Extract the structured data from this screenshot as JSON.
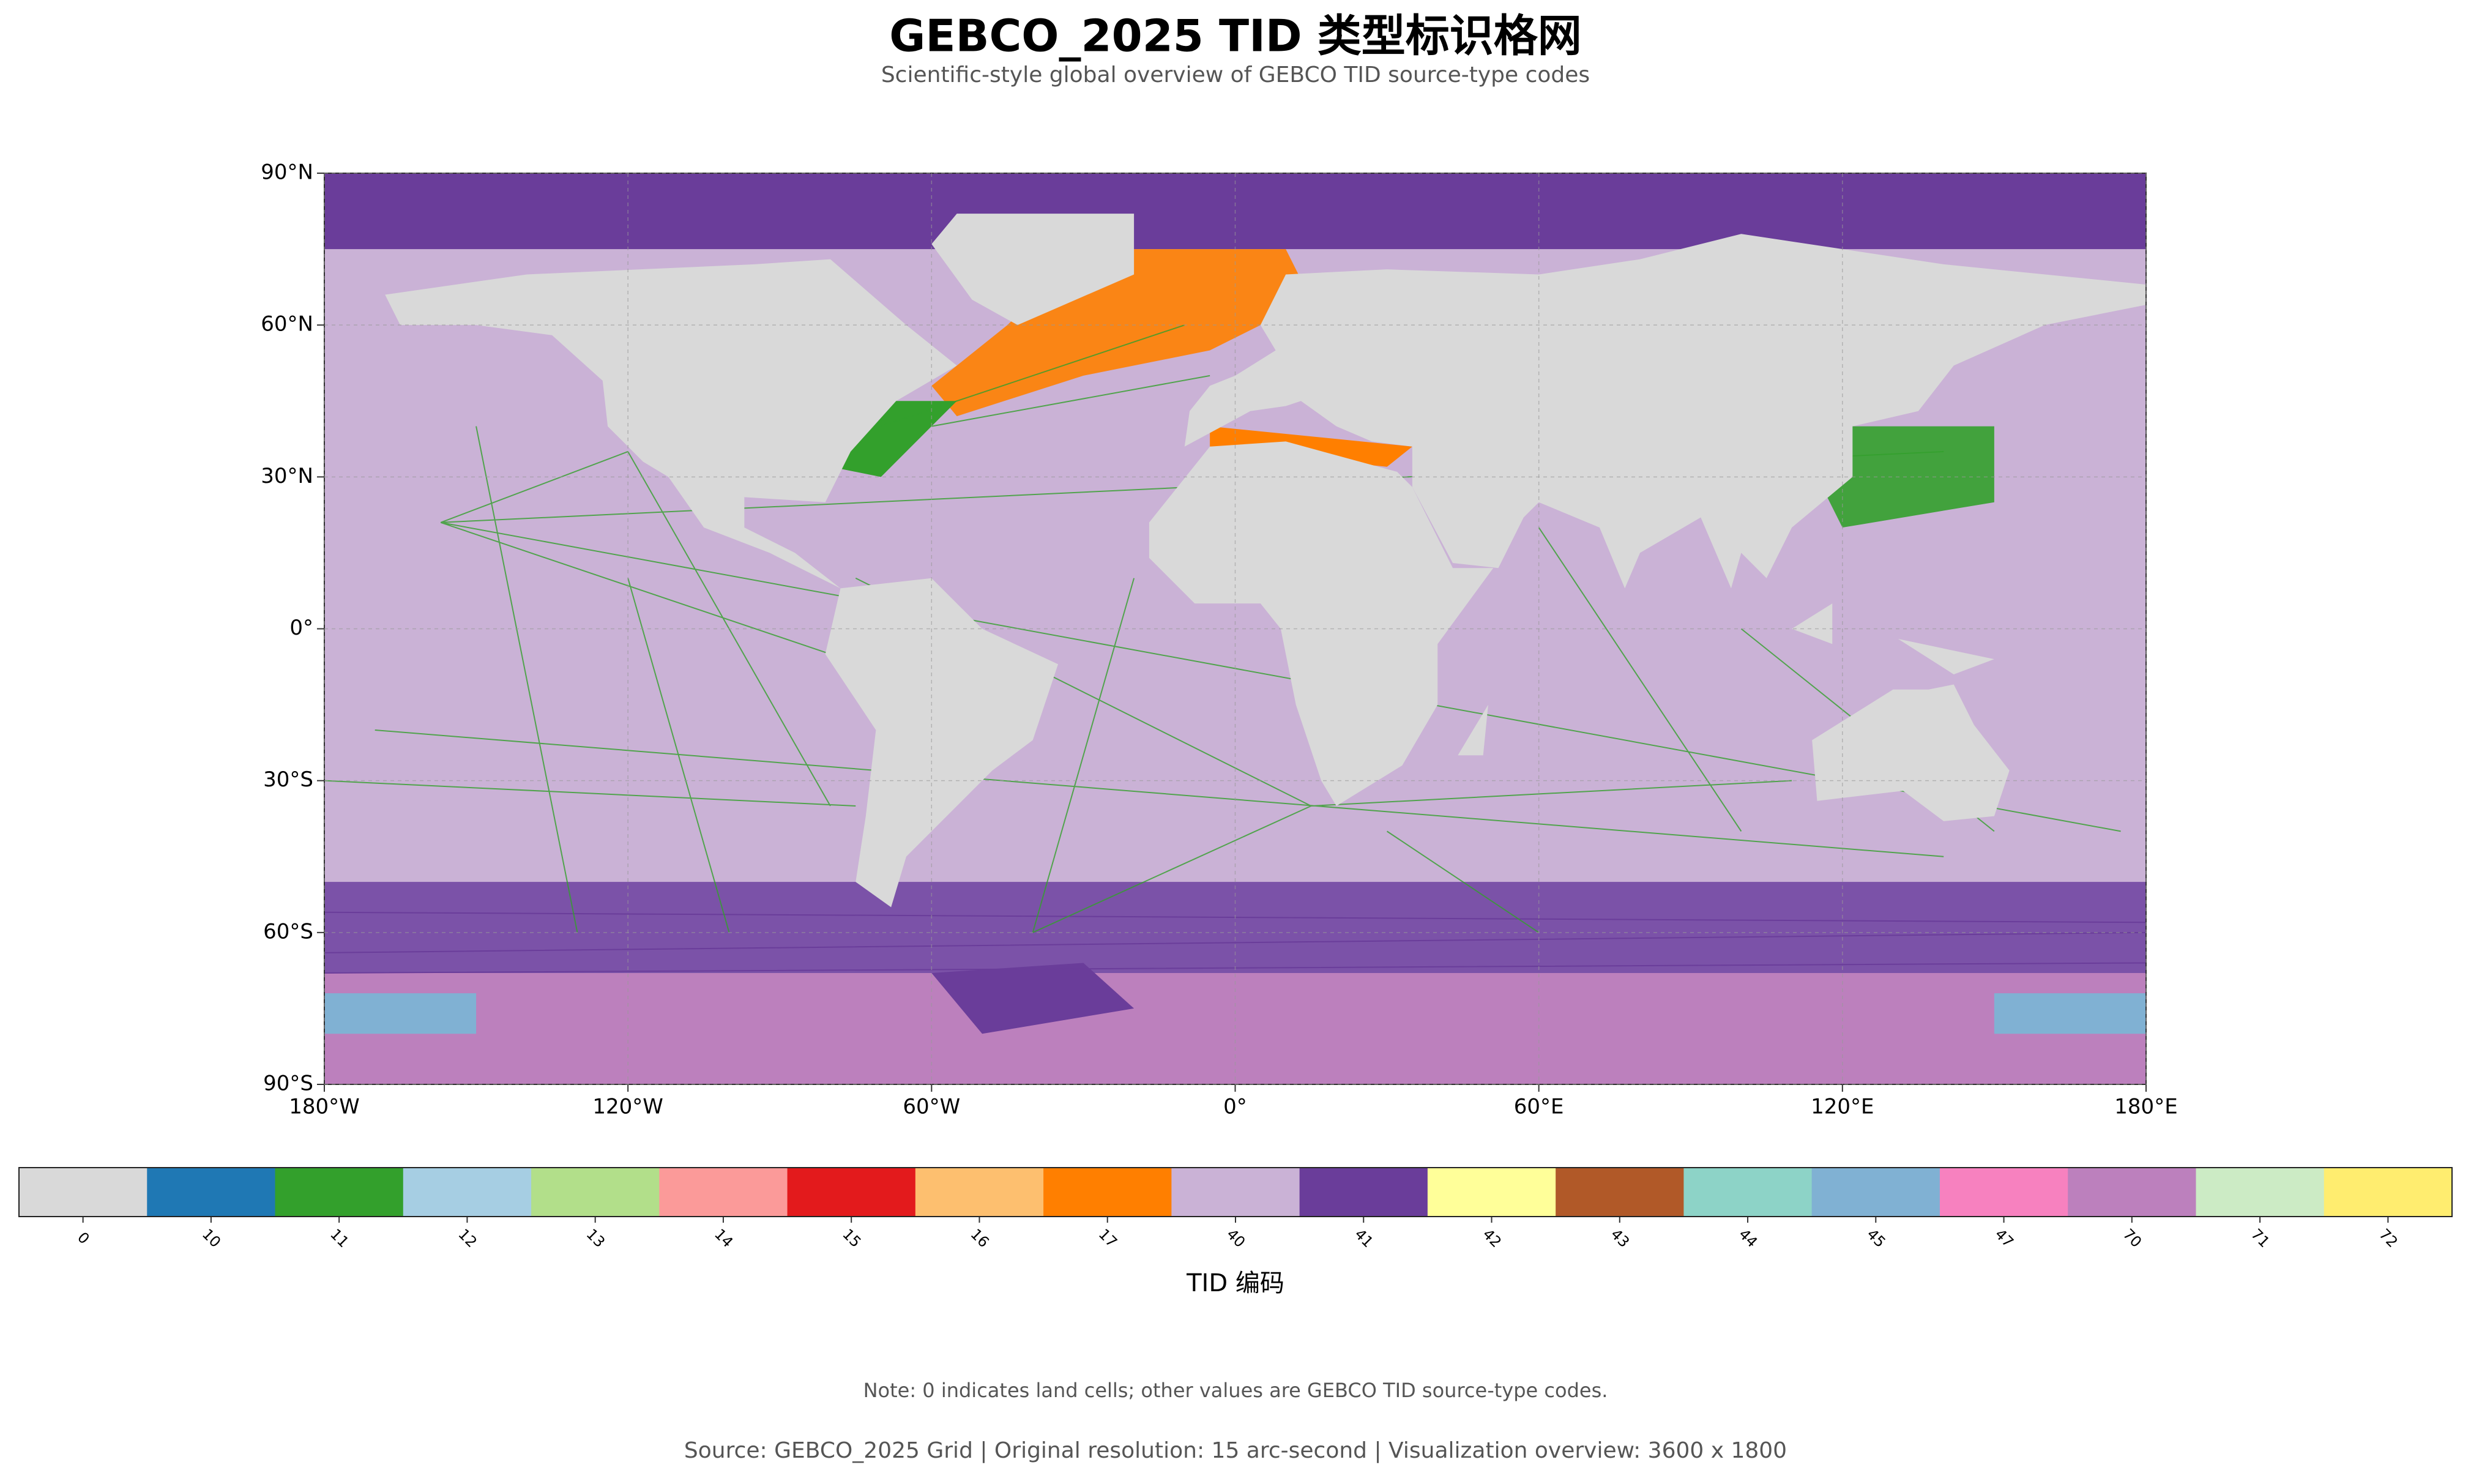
{
  "header": {
    "title": "GEBCO_2025 TID 类型标识格网",
    "subtitle": "Scientific-style global overview of GEBCO TID source-type codes"
  },
  "map": {
    "xlim": [
      -180,
      180
    ],
    "ylim": [
      -90,
      90
    ],
    "xticks": [
      {
        "value": -180,
        "label": "180°W"
      },
      {
        "value": -120,
        "label": "120°W"
      },
      {
        "value": -60,
        "label": "60°W"
      },
      {
        "value": 0,
        "label": "0°"
      },
      {
        "value": 60,
        "label": "60°E"
      },
      {
        "value": 120,
        "label": "120°E"
      },
      {
        "value": 180,
        "label": "180°E"
      }
    ],
    "yticks": [
      {
        "value": 90,
        "label": "90°N"
      },
      {
        "value": 60,
        "label": "60°N"
      },
      {
        "value": 30,
        "label": "30°N"
      },
      {
        "value": 0,
        "label": "0°"
      },
      {
        "value": -30,
        "label": "30°S"
      },
      {
        "value": -60,
        "label": "60°S"
      },
      {
        "value": -90,
        "label": "90°S"
      }
    ],
    "grid": true
  },
  "colorbar": {
    "label": "TID 编码",
    "codes": [
      0,
      10,
      11,
      12,
      13,
      14,
      15,
      16,
      17,
      40,
      41,
      42,
      43,
      44,
      45,
      47,
      70,
      71,
      72
    ],
    "colors": [
      "#d9d9d9",
      "#1f78b4",
      "#33a02c",
      "#a6cee3",
      "#b2df8a",
      "#fb9a99",
      "#e31a1c",
      "#fdbf6f",
      "#ff7f00",
      "#cab2d6",
      "#6a3d9a",
      "#ffff99",
      "#b15928",
      "#8dd3c7",
      "#80b1d3",
      "#f781bf",
      "#bc80bd",
      "#ccebc5",
      "#ffed6f"
    ]
  },
  "footer": {
    "note": "Note: 0 indicates land cells; other values are GEBCO TID source-type codes.",
    "source": "Source: GEBCO_2025 Grid | Original resolution: 15 arc-second | Visualization overview: 3600 x 1800"
  }
}
